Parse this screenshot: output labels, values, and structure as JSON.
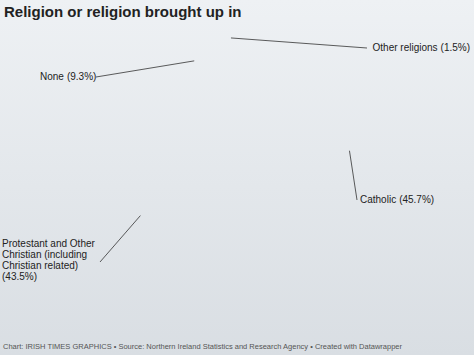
{
  "chart_data": {
    "type": "pie",
    "title": "Religion or religion brought up in",
    "categories": [
      "Catholic",
      "Protestant and Other Christian (including Christian related)",
      "None",
      "Other religions"
    ],
    "values": [
      45.7,
      43.5,
      9.3,
      1.5
    ],
    "value_labels": [
      "(45.7%)",
      "(43.5%)",
      "(9.3%)",
      "(1.5%)"
    ],
    "colors": [
      "#1ba0d2",
      "#c1272d",
      "#e6e6e6",
      "#4f4f4f"
    ],
    "data_labels": true,
    "source": "Chart: IRISH TIMES GRAPHICS • Source: Northern Ireland Statistics and Research Agency • Created with Datawrapper"
  }
}
